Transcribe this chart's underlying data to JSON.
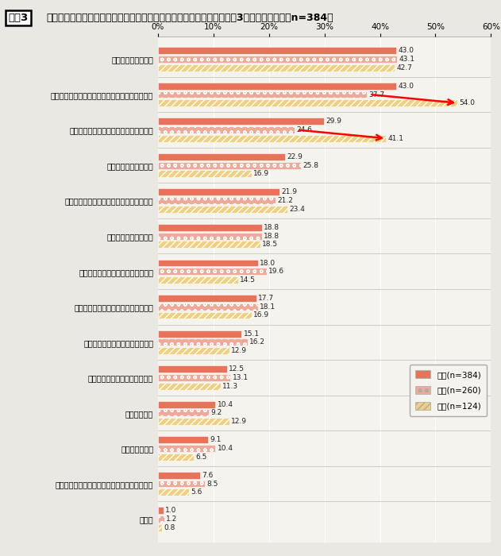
{
  "title_box": "図表3",
  "title_text": "これから仕事をしていく上で、どのようなことに不安がありますか。（3つまで選択可）（n=384）",
  "categories": [
    "仕事での失敗やミス",
    "上司・同僚など職場の人とうまくやっていけるか",
    "仕事に対する現在の自分の能力・スキル",
    "ビジネスマナーや常識",
    "生活リズムの変化についていけるかどうか",
    "基本的な仕事の進め方",
    "社外の人との人脈を築けるかどうか",
    "今後、自分が成長していけるかどうか",
    "会社の雰囲気になじめるかどうか",
    "やりたい仕事ができるかどうか",
    "残業時間の量",
    "転勤や人事異動",
    "学生時代の専門分野を仕事に活かせるかどうか",
    "その他"
  ],
  "zentai": [
    43.0,
    43.0,
    29.9,
    22.9,
    21.9,
    18.8,
    18.0,
    17.7,
    15.1,
    12.5,
    10.4,
    9.1,
    7.6,
    1.0
  ],
  "dansei": [
    43.1,
    37.7,
    24.6,
    25.8,
    21.2,
    18.8,
    19.6,
    18.1,
    16.2,
    13.1,
    9.2,
    10.4,
    8.5,
    1.2
  ],
  "josei": [
    42.7,
    54.0,
    41.1,
    16.9,
    23.4,
    18.5,
    14.5,
    16.9,
    12.9,
    11.3,
    12.9,
    6.5,
    5.6,
    0.8
  ],
  "color_zentai": "#E8735A",
  "color_dansei": "#F0A898",
  "color_josei": "#F0D080",
  "xlim": [
    0,
    60
  ],
  "xticks": [
    0,
    10,
    20,
    30,
    40,
    50,
    60
  ],
  "xticklabels": [
    "0%",
    "10%",
    "20%",
    "30%",
    "40%",
    "50%",
    "60%"
  ],
  "legend_labels": [
    "全体(n=384)",
    "男性(n=260)",
    "女性(n=124)"
  ],
  "bg_color": "#EAE8E2",
  "plot_bg_color": "#F5F3EE",
  "right_bg_color": "#E8E5DF"
}
